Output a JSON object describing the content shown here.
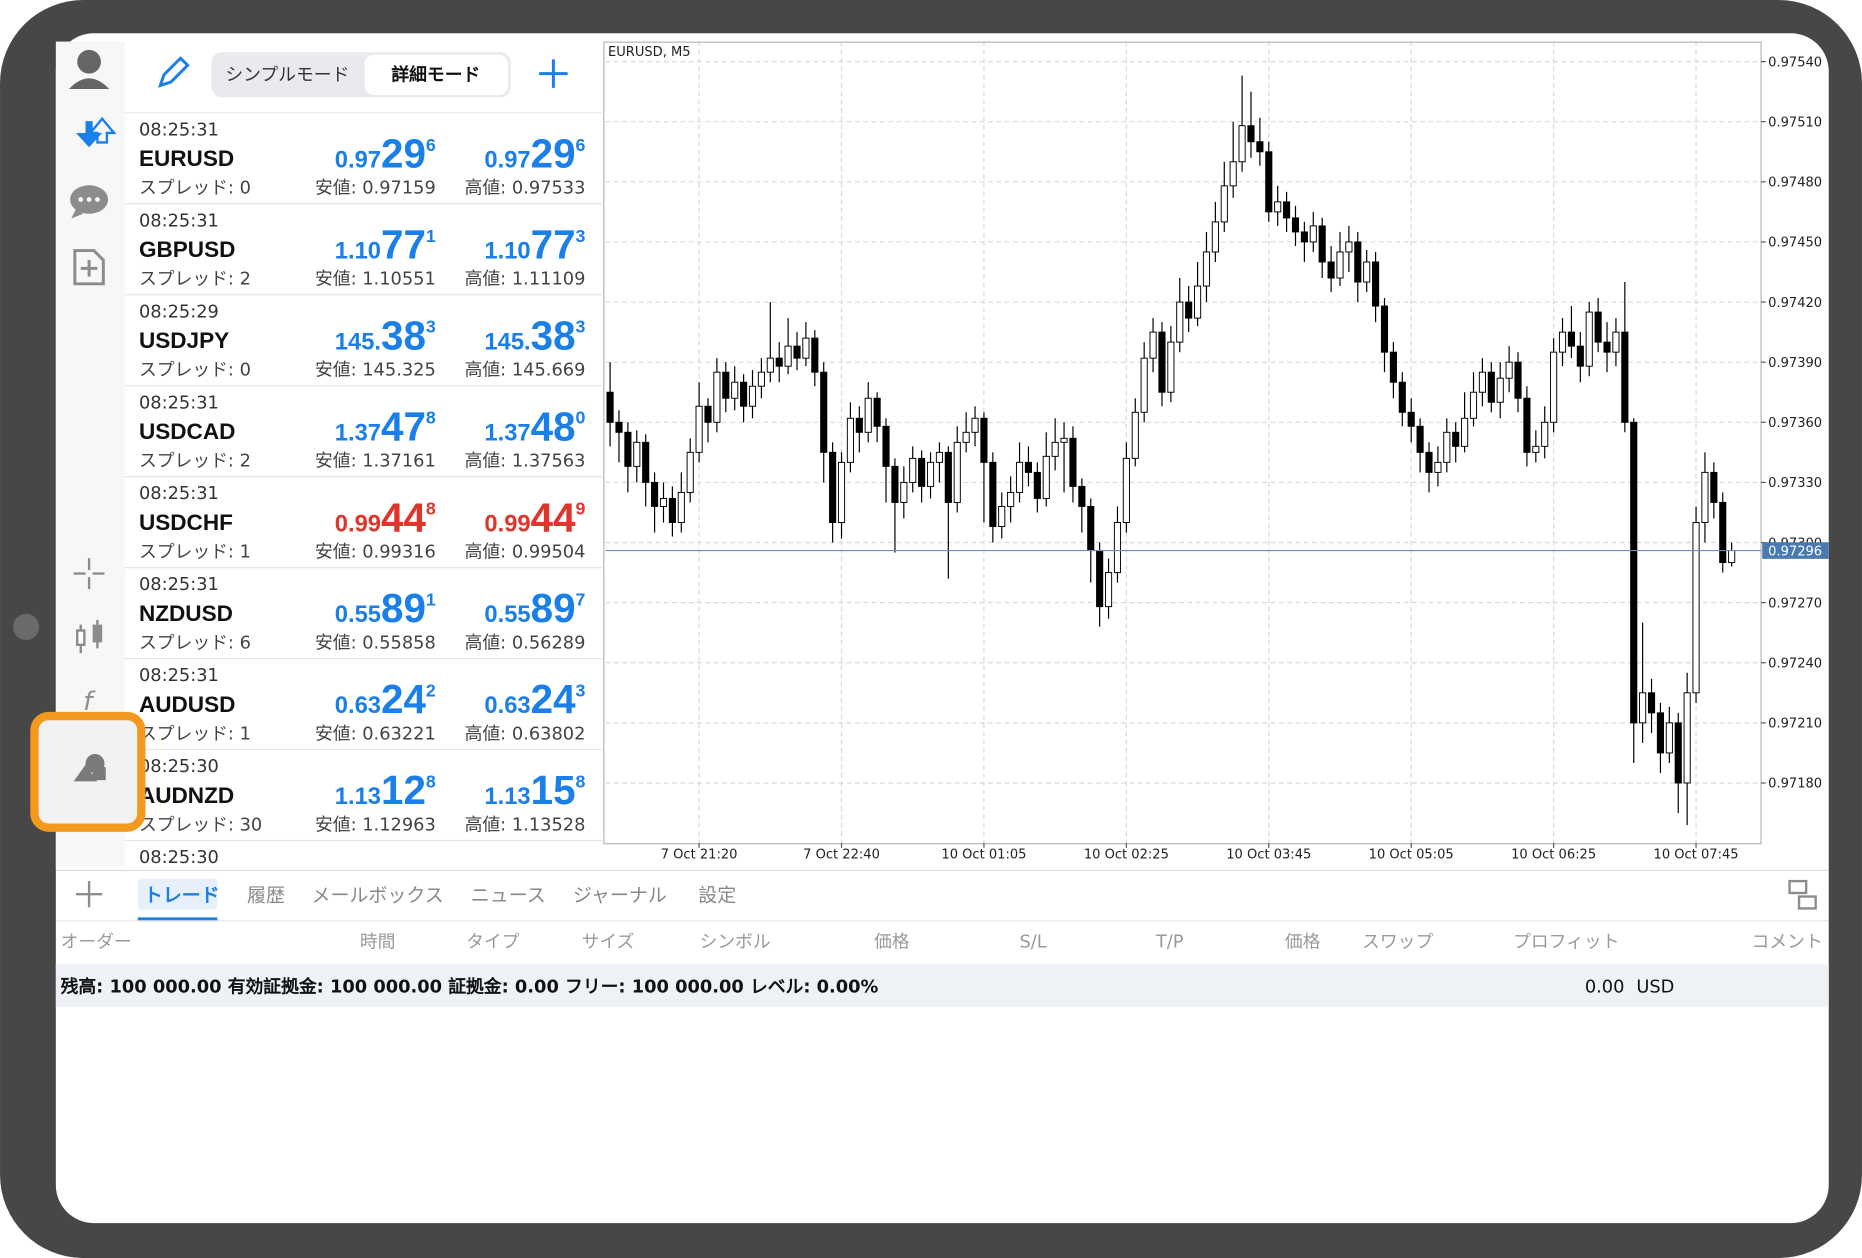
{
  "toolbar": {
    "simple_mode": "シンプルモード",
    "detail_mode": "詳細モード"
  },
  "quotes": [
    {
      "time": "08:25:31",
      "symbol": "EURUSD",
      "spread": "スプレッド: 0",
      "bid": [
        "0.97",
        "29",
        "6"
      ],
      "ask": [
        "0.97",
        "29",
        "6"
      ],
      "low": "安値: 0.97159",
      "high": "高値: 0.97533",
      "color": "#1a7fe8"
    },
    {
      "time": "08:25:31",
      "symbol": "GBPUSD",
      "spread": "スプレッド: 2",
      "bid": [
        "1.10",
        "77",
        "1"
      ],
      "ask": [
        "1.10",
        "77",
        "3"
      ],
      "low": "安値: 1.10551",
      "high": "高値: 1.11109",
      "color": "#1a7fe8"
    },
    {
      "time": "08:25:29",
      "symbol": "USDJPY",
      "spread": "スプレッド: 0",
      "bid": [
        "145.",
        "38",
        "3"
      ],
      "ask": [
        "145.",
        "38",
        "3"
      ],
      "low": "安値: 145.325",
      "high": "高値: 145.669",
      "color": "#1a7fe8"
    },
    {
      "time": "08:25:31",
      "symbol": "USDCAD",
      "spread": "スプレッド: 2",
      "bid": [
        "1.37",
        "47",
        "8"
      ],
      "ask": [
        "1.37",
        "48",
        "0"
      ],
      "low": "安値: 1.37161",
      "high": "高値: 1.37563",
      "color": "#1a7fe8"
    },
    {
      "time": "08:25:31",
      "symbol": "USDCHF",
      "spread": "スプレッド: 1",
      "bid": [
        "0.99",
        "44",
        "8"
      ],
      "ask": [
        "0.99",
        "44",
        "9"
      ],
      "low": "安値: 0.99316",
      "high": "高値: 0.99504",
      "color": "#e0352b"
    },
    {
      "time": "08:25:31",
      "symbol": "NZDUSD",
      "spread": "スプレッド: 6",
      "bid": [
        "0.55",
        "89",
        "1"
      ],
      "ask": [
        "0.55",
        "89",
        "7"
      ],
      "low": "安値: 0.55858",
      "high": "高値: 0.56289",
      "color": "#1a7fe8"
    },
    {
      "time": "08:25:31",
      "symbol": "AUDUSD",
      "spread": "スプレッド: 1",
      "bid": [
        "0.63",
        "24",
        "2"
      ],
      "ask": [
        "0.63",
        "24",
        "3"
      ],
      "low": "安値: 0.63221",
      "high": "高値: 0.63802",
      "color": "#1a7fe8"
    },
    {
      "time": "08:25:30",
      "symbol": "AUDNZD",
      "spread": "スプレッド: 30",
      "bid": [
        "1.13",
        "12",
        "8"
      ],
      "ask": [
        "1.13",
        "15",
        "8"
      ],
      "low": "安値: 1.12963",
      "high": "高値: 1.13528",
      "color": "#1a7fe8"
    },
    {
      "time": "08:25:30"
    }
  ],
  "chart_data": {
    "type": "candlestick",
    "title": "EURUSD, M5",
    "up_color": "#ffffff",
    "down_color": "#000000",
    "grid": true,
    "ylim": [
      0.9715,
      0.9755
    ],
    "yticks": [
      {
        "value": 0.9754,
        "label": "0.97540"
      },
      {
        "value": 0.9751,
        "label": "0.97510"
      },
      {
        "value": 0.9748,
        "label": "0.97480"
      },
      {
        "value": 0.9745,
        "label": "0.97450"
      },
      {
        "value": 0.9742,
        "label": "0.97420"
      },
      {
        "value": 0.9739,
        "label": "0.97390"
      },
      {
        "value": 0.9736,
        "label": "0.97360"
      },
      {
        "value": 0.9733,
        "label": "0.97330"
      },
      {
        "value": 0.973,
        "label": "0.97300"
      },
      {
        "value": 0.9727,
        "label": "0.97270"
      },
      {
        "value": 0.9724,
        "label": "0.97240"
      },
      {
        "value": 0.9721,
        "label": "0.97210"
      },
      {
        "value": 0.9718,
        "label": "0.97180"
      }
    ],
    "current_price": 0.97296,
    "categories": [
      null,
      null,
      null,
      null,
      null,
      null,
      null,
      null,
      null,
      null,
      "7 Oct 21:20",
      null,
      null,
      null,
      null,
      null,
      null,
      null,
      null,
      null,
      null,
      null,
      null,
      null,
      null,
      null,
      "7 Oct 22:40",
      null,
      null,
      null,
      null,
      null,
      null,
      null,
      null,
      null,
      null,
      null,
      null,
      null,
      null,
      null,
      "10 Oct 01:05",
      null,
      null,
      null,
      null,
      null,
      null,
      null,
      null,
      null,
      null,
      null,
      null,
      null,
      null,
      null,
      "10 Oct 02:25",
      null,
      null,
      null,
      null,
      null,
      null,
      null,
      null,
      null,
      null,
      null,
      null,
      null,
      null,
      null,
      "10 Oct 03:45",
      null,
      null,
      null,
      null,
      null,
      null,
      null,
      null,
      null,
      null,
      null,
      null,
      null,
      null,
      null,
      "10 Oct 05:05",
      null,
      null,
      null,
      null,
      null,
      null,
      null,
      null,
      null,
      null,
      null,
      null,
      null,
      null,
      null,
      "10 Oct 06:25",
      null,
      null,
      null,
      null,
      null,
      null,
      null,
      null,
      null,
      null,
      null,
      null,
      null,
      null,
      null,
      "10 Oct 07:45",
      null,
      null,
      null,
      null
    ],
    "open": [
      0.97375,
      0.9736,
      0.97355,
      0.97338,
      0.9735,
      0.9733,
      0.97318,
      0.97322,
      0.9731,
      0.97325,
      0.97345,
      0.97368,
      0.9736,
      0.97385,
      0.97372,
      0.9738,
      0.97368,
      0.97378,
      0.97385,
      0.97392,
      0.97388,
      0.97398,
      0.97392,
      0.97402,
      0.97385,
      0.97345,
      0.9731,
      0.9734,
      0.97362,
      0.97355,
      0.97372,
      0.97358,
      0.97338,
      0.9732,
      0.9733,
      0.97342,
      0.97328,
      0.9734,
      0.97345,
      0.9732,
      0.9735,
      0.97355,
      0.97362,
      0.9734,
      0.97308,
      0.97318,
      0.97325,
      0.9734,
      0.97335,
      0.97322,
      0.97343,
      0.9735,
      0.97352,
      0.97328,
      0.97318,
      0.97296,
      0.97268,
      0.97285,
      0.9731,
      0.97342,
      0.97365,
      0.97392,
      0.97405,
      0.97375,
      0.974,
      0.9742,
      0.97412,
      0.97428,
      0.97445,
      0.9746,
      0.97478,
      0.9749,
      0.97508,
      0.975,
      0.97495,
      0.97465,
      0.9747,
      0.97462,
      0.97455,
      0.9745,
      0.97458,
      0.9744,
      0.97432,
      0.97445,
      0.9745,
      0.9743,
      0.9744,
      0.97418,
      0.97395,
      0.9738,
      0.97365,
      0.97358,
      0.97345,
      0.97335,
      0.9734,
      0.97355,
      0.97348,
      0.97362,
      0.97375,
      0.97385,
      0.9737,
      0.97382,
      0.9739,
      0.97372,
      0.97345,
      0.97348,
      0.9736,
      0.97395,
      0.97405,
      0.97398,
      0.97388,
      0.97415,
      0.974,
      0.97395,
      0.97405,
      0.9736,
      0.9721,
      0.97225,
      0.97215,
      0.97195,
      0.9721,
      0.9718,
      0.97225,
      0.9731,
      0.97335,
      0.9732,
      0.9729
    ],
    "high": [
      0.9739,
      0.97366,
      0.9736,
      0.97356,
      0.97354,
      0.97335,
      0.9733,
      0.97328,
      0.97335,
      0.97352,
      0.9738,
      0.97372,
      0.97392,
      0.9739,
      0.97388,
      0.97384,
      0.97386,
      0.97392,
      0.9742,
      0.974,
      0.97412,
      0.97405,
      0.9741,
      0.97406,
      0.9739,
      0.9735,
      0.97345,
      0.9737,
      0.97368,
      0.9738,
      0.97375,
      0.97362,
      0.97342,
      0.97338,
      0.97348,
      0.97346,
      0.97345,
      0.9735,
      0.97348,
      0.97358,
      0.97365,
      0.97368,
      0.97365,
      0.97345,
      0.97325,
      0.97333,
      0.9735,
      0.97348,
      0.9734,
      0.97355,
      0.97362,
      0.9736,
      0.97358,
      0.97332,
      0.97322,
      0.973,
      0.97292,
      0.97318,
      0.9735,
      0.97372,
      0.974,
      0.97412,
      0.9741,
      0.97408,
      0.97432,
      0.97428,
      0.9744,
      0.97455,
      0.9747,
      0.9749,
      0.9751,
      0.97533,
      0.97525,
      0.97512,
      0.975,
      0.97478,
      0.97475,
      0.97468,
      0.9746,
      0.97465,
      0.97462,
      0.97448,
      0.97455,
      0.97458,
      0.97455,
      0.97446,
      0.97445,
      0.97422,
      0.974,
      0.97385,
      0.97372,
      0.97362,
      0.9735,
      0.97348,
      0.97362,
      0.9736,
      0.97375,
      0.97385,
      0.97392,
      0.9739,
      0.9739,
      0.97398,
      0.97395,
      0.97378,
      0.97356,
      0.97368,
      0.97402,
      0.97412,
      0.97418,
      0.97405,
      0.9742,
      0.97422,
      0.9741,
      0.97412,
      0.9743,
      0.97362,
      0.9726,
      0.97232,
      0.9722,
      0.97218,
      0.97215,
      0.97235,
      0.97318,
      0.97345,
      0.9734,
      0.97325,
      0.973
    ],
    "low": [
      0.97348,
      0.9734,
      0.97325,
      0.9733,
      0.97318,
      0.97305,
      0.9731,
      0.97303,
      0.97305,
      0.9732,
      0.9734,
      0.9735,
      0.97355,
      0.97365,
      0.97366,
      0.9736,
      0.97362,
      0.97372,
      0.9738,
      0.9738,
      0.97384,
      0.97386,
      0.97388,
      0.97378,
      0.9733,
      0.973,
      0.97302,
      0.97335,
      0.97345,
      0.9735,
      0.9735,
      0.9732,
      0.97295,
      0.97312,
      0.97325,
      0.9732,
      0.97322,
      0.9733,
      0.97282,
      0.97315,
      0.97345,
      0.97348,
      0.9731,
      0.973,
      0.97302,
      0.9731,
      0.9732,
      0.97328,
      0.97315,
      0.97318,
      0.97336,
      0.97325,
      0.9732,
      0.97305,
      0.9728,
      0.97258,
      0.97262,
      0.9728,
      0.97305,
      0.97338,
      0.9736,
      0.97385,
      0.97368,
      0.9737,
      0.97395,
      0.97405,
      0.97408,
      0.9742,
      0.9744,
      0.97455,
      0.97472,
      0.97485,
      0.97492,
      0.97488,
      0.9746,
      0.97458,
      0.97455,
      0.97448,
      0.9744,
      0.97445,
      0.97432,
      0.97425,
      0.97428,
      0.97435,
      0.9742,
      0.97425,
      0.9741,
      0.97385,
      0.97372,
      0.97358,
      0.9735,
      0.97335,
      0.97325,
      0.97328,
      0.97335,
      0.9734,
      0.97345,
      0.97358,
      0.97368,
      0.97365,
      0.97362,
      0.97375,
      0.97365,
      0.97338,
      0.9734,
      0.97342,
      0.97355,
      0.97388,
      0.97392,
      0.9738,
      0.97383,
      0.97395,
      0.97385,
      0.97388,
      0.97355,
      0.9719,
      0.972,
      0.97205,
      0.97185,
      0.9719,
      0.97165,
      0.97159,
      0.9722,
      0.973,
      0.97312,
      0.97285,
      0.97288
    ],
    "close": [
      0.9736,
      0.97355,
      0.97338,
      0.9735,
      0.9733,
      0.97318,
      0.97322,
      0.9731,
      0.97325,
      0.97345,
      0.97368,
      0.9736,
      0.97385,
      0.97372,
      0.9738,
      0.97368,
      0.97378,
      0.97385,
      0.97392,
      0.97388,
      0.97398,
      0.97392,
      0.97402,
      0.97385,
      0.97345,
      0.9731,
      0.9734,
      0.97362,
      0.97355,
      0.97372,
      0.97358,
      0.97338,
      0.9732,
      0.9733,
      0.97342,
      0.97328,
      0.9734,
      0.97345,
      0.9732,
      0.9735,
      0.97355,
      0.97362,
      0.9734,
      0.97308,
      0.97318,
      0.97325,
      0.9734,
      0.97335,
      0.97322,
      0.97343,
      0.9735,
      0.97352,
      0.97328,
      0.97318,
      0.97296,
      0.97268,
      0.97285,
      0.9731,
      0.97342,
      0.97365,
      0.97392,
      0.97405,
      0.97375,
      0.974,
      0.9742,
      0.97412,
      0.97428,
      0.97445,
      0.9746,
      0.97478,
      0.9749,
      0.97508,
      0.975,
      0.97495,
      0.97465,
      0.9747,
      0.97462,
      0.97455,
      0.9745,
      0.97458,
      0.9744,
      0.97432,
      0.97445,
      0.9745,
      0.9743,
      0.9744,
      0.97418,
      0.97395,
      0.9738,
      0.97365,
      0.97358,
      0.97345,
      0.97335,
      0.9734,
      0.97355,
      0.97348,
      0.97362,
      0.97375,
      0.97385,
      0.9737,
      0.97382,
      0.9739,
      0.97372,
      0.97345,
      0.97348,
      0.9736,
      0.97395,
      0.97405,
      0.97398,
      0.97388,
      0.97415,
      0.974,
      0.97395,
      0.97405,
      0.9736,
      0.9721,
      0.97225,
      0.97215,
      0.97195,
      0.9721,
      0.9718,
      0.97225,
      0.9731,
      0.97335,
      0.9732,
      0.9729,
      0.97296
    ]
  },
  "tabs": [
    "トレード",
    "履歴",
    "メールボックス",
    "ニュース",
    "ジャーナル",
    "設定"
  ],
  "columns": [
    "オーダー",
    "時間",
    "タイプ",
    "サイズ",
    "シンボル",
    "価格",
    "S/L",
    "T/P",
    "価格",
    "スワップ",
    "プロフィット",
    "コメント"
  ],
  "balance": "残高: 100 000.00 有効証拠金: 100 000.00 証拠金: 0.00 フリー: 100 000.00 レベル: 0.00%",
  "total": "0.00",
  "currency": "USD"
}
